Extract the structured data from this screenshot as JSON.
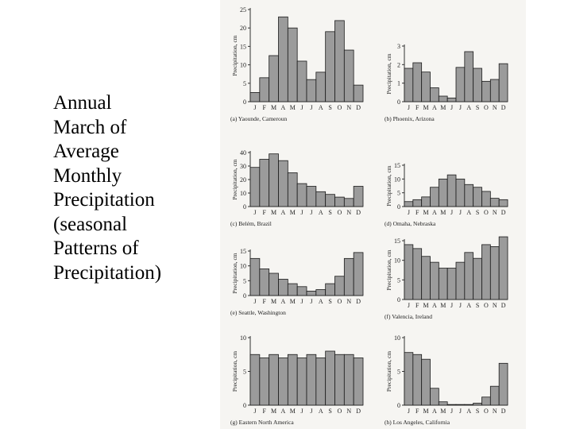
{
  "slide": {
    "title_lines": [
      "Annual",
      "March of",
      "Average",
      "Monthly",
      "Precipitation",
      "(seasonal",
      "Patterns of",
      "Precipitation)"
    ]
  },
  "colors": {
    "bar": "#9b9b9b",
    "bar_stroke": "#1a1a1a",
    "panel": "#f6f5f2"
  },
  "chart_data": [
    {
      "type": "bar",
      "caption": "(a) Yaounde, Cameroun",
      "ylabel": "Precipitation, cm",
      "ylim": [
        0,
        25
      ],
      "yticks": [
        0,
        5,
        10,
        15,
        20,
        25
      ],
      "categories": [
        "J",
        "F",
        "M",
        "A",
        "M",
        "J",
        "J",
        "A",
        "S",
        "O",
        "N",
        "D"
      ],
      "values": [
        2.5,
        6.5,
        12.5,
        23,
        20,
        11,
        6,
        8,
        19,
        22,
        14,
        4.5
      ]
    },
    {
      "type": "bar",
      "caption": "(b) Phoenix, Arizona",
      "ylabel": "Precipitation, cm",
      "ylim": [
        0,
        3
      ],
      "yticks": [
        0,
        1,
        2,
        3
      ],
      "categories": [
        "J",
        "F",
        "M",
        "A",
        "M",
        "J",
        "J",
        "A",
        "S",
        "O",
        "N",
        "D"
      ],
      "values": [
        1.8,
        2.1,
        1.6,
        0.75,
        0.3,
        0.2,
        1.85,
        2.7,
        1.8,
        1.1,
        1.2,
        2.05
      ]
    },
    {
      "type": "bar",
      "caption": "(c) Belém, Brazil",
      "ylabel": "Precipitation, cm",
      "ylim": [
        0,
        40
      ],
      "yticks": [
        0,
        10,
        20,
        30,
        40
      ],
      "categories": [
        "J",
        "F",
        "M",
        "A",
        "M",
        "J",
        "J",
        "A",
        "S",
        "O",
        "N",
        "D"
      ],
      "values": [
        29,
        35,
        39,
        34,
        25,
        17,
        15,
        11,
        9,
        7,
        6,
        15
      ]
    },
    {
      "type": "bar",
      "caption": "(d) Omaha, Nebraska",
      "ylabel": "Precipitation, cm",
      "ylim": [
        0,
        15
      ],
      "yticks": [
        0,
        5,
        10,
        15
      ],
      "categories": [
        "J",
        "F",
        "M",
        "A",
        "M",
        "J",
        "J",
        "A",
        "S",
        "O",
        "N",
        "D"
      ],
      "values": [
        1.8,
        2.5,
        3.5,
        7,
        10,
        11.5,
        10,
        8,
        7,
        5.5,
        3,
        2.5
      ]
    },
    {
      "type": "bar",
      "caption": "(e) Seattle, Washington",
      "ylabel": "Precipitation, cm",
      "ylim": [
        0,
        15
      ],
      "yticks": [
        0,
        5,
        10,
        15
      ],
      "categories": [
        "J",
        "F",
        "M",
        "A",
        "M",
        "J",
        "J",
        "A",
        "S",
        "O",
        "N",
        "D"
      ],
      "values": [
        12.5,
        9,
        7.5,
        5.5,
        4,
        3,
        1.5,
        2,
        4,
        6.5,
        12.5,
        14.5
      ]
    },
    {
      "type": "bar",
      "caption": "(f) Valencia, Ireland",
      "ylabel": "Precipitation, cm",
      "ylim": [
        0,
        15
      ],
      "yticks": [
        0,
        5,
        10,
        15
      ],
      "categories": [
        "J",
        "F",
        "M",
        "A",
        "M",
        "J",
        "J",
        "A",
        "S",
        "O",
        "N",
        "D"
      ],
      "values": [
        14,
        13,
        11,
        9.5,
        8,
        8,
        9.5,
        12,
        10.5,
        14,
        13.5,
        16
      ]
    },
    {
      "type": "bar",
      "caption": "(g) Eastern North America",
      "ylabel": "Precipitation, cm",
      "ylim": [
        0,
        10
      ],
      "yticks": [
        0,
        5,
        10
      ],
      "categories": [
        "J",
        "F",
        "M",
        "A",
        "M",
        "J",
        "J",
        "A",
        "S",
        "O",
        "N",
        "D"
      ],
      "values": [
        7.5,
        7,
        7.5,
        7,
        7.5,
        7,
        7.5,
        7,
        8,
        7.5,
        7.5,
        7
      ]
    },
    {
      "type": "bar",
      "caption": "(h) Los Angeles, California",
      "ylabel": "Precipitation, cm",
      "ylim": [
        0,
        10
      ],
      "yticks": [
        0,
        5,
        10
      ],
      "categories": [
        "J",
        "F",
        "M",
        "A",
        "M",
        "J",
        "J",
        "A",
        "S",
        "O",
        "N",
        "D"
      ],
      "values": [
        7.8,
        7.5,
        6.8,
        2.5,
        0.5,
        0.1,
        0.1,
        0.1,
        0.3,
        1.2,
        2.8,
        6.2
      ]
    }
  ]
}
